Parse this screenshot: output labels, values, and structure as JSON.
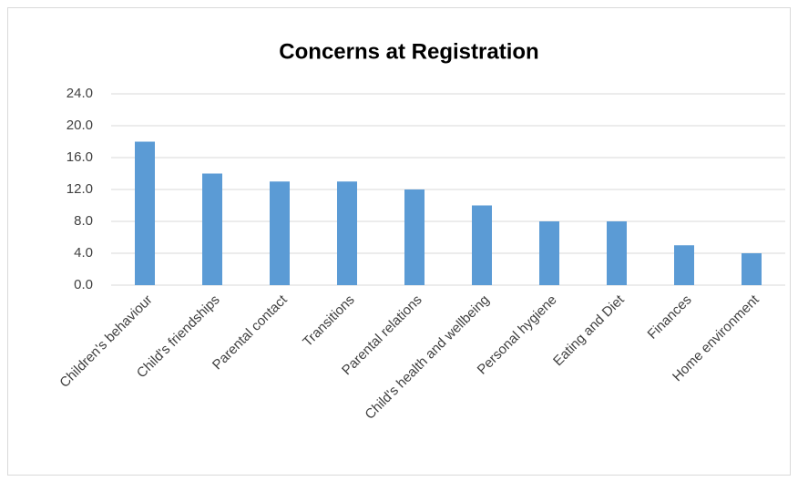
{
  "chart_data": {
    "type": "bar",
    "title": "Concerns at Registration",
    "categories": [
      "Children's behaviour",
      "Child's friendships",
      "Parental contact",
      "Transitions",
      "Parental relations",
      "Child's health and wellbeing",
      "Personal hygiene",
      "Eating and Diet",
      "Finances",
      "Home environment"
    ],
    "values": [
      18,
      14,
      13,
      13,
      12,
      10,
      8,
      8,
      5,
      4
    ],
    "color": "#5b9bd5",
    "ylim": [
      0,
      24
    ],
    "yticks": [
      {
        "value": 0,
        "label": "0.0"
      },
      {
        "value": 4,
        "label": "4.0"
      },
      {
        "value": 8,
        "label": "8.0"
      },
      {
        "value": 12,
        "label": "12.0"
      },
      {
        "value": 16,
        "label": "16.0"
      },
      {
        "value": 20,
        "label": "20.0"
      },
      {
        "value": 24,
        "label": "24.0"
      }
    ],
    "grid": true
  }
}
